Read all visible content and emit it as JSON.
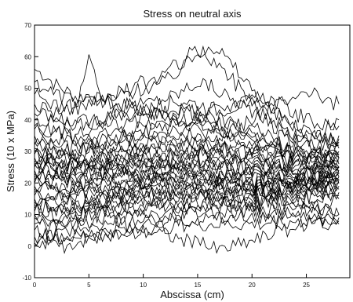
{
  "chart_data": {
    "type": "line",
    "title": "Stress on neutral axis",
    "xlabel": "Abscissa (cm)",
    "ylabel": "Stress (10 x MPa)",
    "xlim": [
      0,
      29
    ],
    "ylim": [
      -10,
      70
    ],
    "x_ticks": [
      0,
      5,
      10,
      15,
      20,
      25
    ],
    "y_ticks": [
      -10,
      0,
      10,
      20,
      30,
      40,
      50,
      60,
      70
    ],
    "grid": false,
    "legend": "none",
    "line_color": "#000000",
    "x": [
      0,
      1,
      2,
      3,
      4,
      5,
      6,
      7,
      8,
      9,
      10,
      11,
      12,
      13,
      14,
      15,
      16,
      17,
      18,
      19,
      20,
      21,
      22,
      23,
      24,
      25,
      26,
      27,
      28
    ],
    "series": [
      {
        "values": [
          56,
          54,
          51,
          49,
          47,
          48,
          46,
          45,
          44,
          45,
          43,
          42,
          41,
          40,
          39,
          38,
          37,
          36,
          35,
          34,
          33,
          32,
          31,
          30,
          29,
          28,
          27,
          26,
          25
        ]
      },
      {
        "values": [
          52,
          50,
          48,
          47,
          46,
          60,
          47,
          46,
          45,
          44,
          43,
          42,
          42,
          43,
          44,
          42,
          40,
          39,
          38,
          37,
          36,
          34,
          33,
          32,
          31,
          30,
          29,
          28,
          28
        ]
      },
      {
        "values": [
          48,
          46,
          45,
          44,
          44,
          45,
          46,
          47,
          48,
          49,
          50,
          51,
          52,
          55,
          58,
          61,
          64,
          62,
          58,
          54,
          50,
          46,
          42,
          40,
          38,
          36,
          35,
          34,
          34
        ]
      },
      {
        "values": [
          45,
          44,
          43,
          43,
          44,
          45,
          46,
          47,
          49,
          50,
          52,
          53,
          55,
          57,
          60,
          62,
          60,
          57,
          53,
          50,
          46,
          43,
          40,
          37,
          35,
          33,
          31,
          30,
          29
        ]
      },
      {
        "values": [
          42,
          41,
          40,
          39,
          39,
          40,
          41,
          42,
          43,
          44,
          45,
          46,
          47,
          48,
          50,
          52,
          51,
          49,
          47,
          45,
          43,
          40,
          38,
          36,
          34,
          32,
          30,
          29,
          28
        ]
      },
      {
        "values": [
          40,
          40,
          39,
          38,
          38,
          39,
          40,
          41,
          41,
          42,
          43,
          44,
          45,
          46,
          46,
          45,
          44,
          43,
          44,
          45,
          46,
          47,
          46,
          44,
          42,
          40,
          39,
          38,
          38
        ]
      },
      {
        "values": [
          37,
          36,
          36,
          35,
          35,
          36,
          37,
          38,
          38,
          39,
          40,
          41,
          41,
          42,
          43,
          42,
          41,
          40,
          39,
          38,
          37,
          36,
          35,
          34,
          33,
          33,
          34,
          38,
          40
        ]
      },
      {
        "values": [
          35,
          34,
          34,
          33,
          33,
          34,
          35,
          36,
          36,
          37,
          38,
          39,
          39,
          40,
          40,
          39,
          38,
          37,
          36,
          35,
          34,
          33,
          32,
          31,
          30,
          30,
          31,
          33,
          35
        ]
      },
      {
        "values": [
          33,
          32,
          32,
          31,
          31,
          32,
          33,
          34,
          35,
          35,
          36,
          36,
          37,
          37,
          38,
          37,
          36,
          35,
          34,
          33,
          32,
          31,
          30,
          30,
          29,
          29,
          30,
          31,
          32
        ]
      },
      {
        "values": [
          31,
          30,
          30,
          30,
          30,
          31,
          32,
          32,
          33,
          33,
          34,
          34,
          35,
          35,
          36,
          35,
          34,
          33,
          32,
          31,
          30,
          30,
          29,
          28,
          28,
          28,
          29,
          30,
          31
        ]
      },
      {
        "values": [
          30,
          29,
          29,
          28,
          28,
          29,
          30,
          31,
          31,
          32,
          32,
          33,
          33,
          34,
          34,
          33,
          33,
          32,
          31,
          30,
          30,
          29,
          28,
          28,
          27,
          27,
          28,
          29,
          30
        ]
      },
      {
        "values": [
          29,
          28,
          28,
          27,
          27,
          28,
          29,
          29,
          30,
          30,
          31,
          31,
          32,
          32,
          33,
          32,
          31,
          31,
          30,
          29,
          29,
          28,
          28,
          27,
          27,
          27,
          27,
          28,
          29
        ]
      },
      {
        "values": [
          28,
          27,
          27,
          26,
          26,
          27,
          28,
          28,
          29,
          29,
          30,
          30,
          31,
          31,
          31,
          31,
          30,
          30,
          29,
          28,
          28,
          27,
          27,
          26,
          26,
          26,
          27,
          27,
          28
        ]
      },
      {
        "values": [
          27,
          26,
          26,
          25,
          25,
          26,
          27,
          27,
          28,
          28,
          29,
          29,
          29,
          30,
          30,
          30,
          29,
          29,
          28,
          27,
          27,
          26,
          26,
          25,
          25,
          25,
          26,
          26,
          27
        ]
      },
      {
        "values": [
          26,
          25,
          25,
          25,
          25,
          25,
          26,
          26,
          27,
          27,
          28,
          28,
          28,
          29,
          29,
          29,
          28,
          28,
          27,
          27,
          26,
          26,
          25,
          25,
          24,
          24,
          25,
          25,
          26
        ]
      },
      {
        "values": [
          25,
          25,
          24,
          24,
          24,
          25,
          25,
          26,
          26,
          26,
          27,
          27,
          27,
          28,
          28,
          28,
          27,
          27,
          26,
          26,
          25,
          25,
          24,
          24,
          24,
          24,
          24,
          25,
          25
        ]
      },
      {
        "values": [
          24,
          24,
          23,
          23,
          23,
          24,
          24,
          25,
          25,
          25,
          26,
          26,
          26,
          27,
          27,
          27,
          26,
          26,
          25,
          25,
          24,
          24,
          24,
          23,
          23,
          23,
          24,
          24,
          25
        ]
      },
      {
        "values": [
          23,
          23,
          22,
          22,
          22,
          23,
          23,
          24,
          24,
          24,
          25,
          25,
          25,
          26,
          26,
          26,
          25,
          25,
          25,
          24,
          24,
          23,
          23,
          23,
          22,
          23,
          23,
          24,
          24
        ]
      },
      {
        "values": [
          22,
          22,
          21,
          21,
          21,
          22,
          22,
          23,
          23,
          23,
          24,
          24,
          24,
          25,
          25,
          25,
          24,
          24,
          24,
          23,
          23,
          23,
          22,
          22,
          22,
          22,
          23,
          23,
          24
        ]
      },
      {
        "values": [
          21,
          21,
          20,
          20,
          20,
          21,
          21,
          22,
          22,
          22,
          23,
          23,
          23,
          24,
          24,
          24,
          23,
          23,
          23,
          22,
          22,
          22,
          22,
          21,
          21,
          22,
          22,
          23,
          23
        ]
      },
      {
        "values": [
          20,
          20,
          19,
          19,
          19,
          20,
          20,
          21,
          21,
          21,
          22,
          22,
          22,
          23,
          23,
          23,
          22,
          22,
          22,
          22,
          21,
          21,
          21,
          21,
          21,
          21,
          22,
          22,
          23
        ]
      },
      {
        "values": [
          19,
          19,
          18,
          18,
          18,
          19,
          19,
          20,
          20,
          20,
          21,
          21,
          21,
          22,
          22,
          22,
          21,
          21,
          21,
          21,
          21,
          21,
          20,
          20,
          20,
          21,
          21,
          22,
          22
        ]
      },
      {
        "values": [
          18,
          18,
          17,
          17,
          17,
          18,
          18,
          19,
          19,
          19,
          20,
          20,
          20,
          21,
          21,
          21,
          21,
          21,
          20,
          20,
          20,
          20,
          20,
          20,
          20,
          20,
          21,
          21,
          22
        ]
      },
      {
        "values": [
          17,
          17,
          16,
          16,
          16,
          17,
          17,
          18,
          18,
          18,
          19,
          19,
          19,
          20,
          20,
          20,
          20,
          20,
          20,
          20,
          19,
          19,
          19,
          19,
          19,
          20,
          20,
          21,
          21
        ]
      },
      {
        "values": [
          16,
          16,
          15,
          15,
          15,
          16,
          16,
          17,
          17,
          17,
          18,
          18,
          18,
          19,
          19,
          19,
          19,
          19,
          19,
          19,
          19,
          19,
          19,
          19,
          19,
          19,
          20,
          20,
          21
        ]
      },
      {
        "values": [
          15,
          15,
          14,
          14,
          14,
          15,
          15,
          16,
          16,
          16,
          17,
          17,
          17,
          18,
          18,
          18,
          18,
          18,
          18,
          18,
          18,
          18,
          18,
          18,
          18,
          19,
          19,
          20,
          20
        ]
      },
      {
        "values": [
          14,
          14,
          13,
          13,
          13,
          14,
          14,
          15,
          15,
          15,
          16,
          16,
          16,
          17,
          17,
          17,
          17,
          17,
          17,
          17,
          17,
          17,
          17,
          17,
          18,
          18,
          19,
          19,
          20
        ]
      },
      {
        "values": [
          13,
          13,
          12,
          12,
          12,
          13,
          13,
          14,
          14,
          14,
          15,
          15,
          15,
          16,
          16,
          16,
          16,
          16,
          16,
          16,
          16,
          16,
          16,
          17,
          17,
          17,
          18,
          18,
          19
        ]
      },
      {
        "values": [
          12,
          12,
          11,
          11,
          11,
          12,
          12,
          13,
          13,
          13,
          14,
          14,
          14,
          15,
          15,
          15,
          15,
          15,
          15,
          15,
          15,
          15,
          16,
          16,
          16,
          16,
          17,
          17,
          18
        ]
      },
      {
        "values": [
          11,
          11,
          10,
          10,
          10,
          11,
          11,
          12,
          12,
          12,
          13,
          13,
          13,
          14,
          14,
          14,
          14,
          14,
          14,
          14,
          14,
          14,
          15,
          15,
          15,
          16,
          16,
          17,
          17
        ]
      },
      {
        "values": [
          10,
          10,
          9,
          9,
          9,
          10,
          10,
          11,
          11,
          11,
          12,
          12,
          12,
          13,
          13,
          13,
          13,
          13,
          13,
          13,
          13,
          13,
          14,
          14,
          14,
          15,
          15,
          16,
          16
        ]
      },
      {
        "values": [
          9,
          8,
          8,
          7,
          7,
          8,
          8,
          9,
          9,
          9,
          10,
          10,
          10,
          11,
          11,
          11,
          11,
          11,
          11,
          11,
          11,
          11,
          12,
          12,
          12,
          12,
          11,
          10,
          10
        ]
      },
      {
        "values": [
          7,
          6,
          6,
          5,
          5,
          6,
          6,
          7,
          7,
          7,
          8,
          8,
          8,
          9,
          9,
          9,
          9,
          9,
          9,
          9,
          9,
          9,
          9,
          10,
          10,
          10,
          9,
          8,
          8
        ]
      },
      {
        "values": [
          5,
          4,
          4,
          3,
          3,
          4,
          4,
          5,
          5,
          5,
          6,
          6,
          6,
          7,
          7,
          7,
          7,
          7,
          7,
          7,
          7,
          7,
          8,
          8,
          8,
          8,
          8,
          7,
          7
        ]
      },
      {
        "values": [
          3,
          3,
          2,
          2,
          2,
          3,
          3,
          4,
          4,
          4,
          5,
          5,
          4,
          3,
          2,
          1,
          0,
          -1,
          0,
          1,
          2,
          3,
          4,
          5,
          6,
          7,
          8,
          8,
          9
        ]
      },
      {
        "values": [
          1,
          1,
          0,
          0,
          1,
          2,
          3,
          4,
          5,
          6,
          7,
          8,
          9,
          10,
          11,
          12,
          13,
          14,
          15,
          16,
          17,
          18,
          19,
          20,
          21,
          22,
          23,
          24,
          25
        ]
      },
      {
        "values": [
          0,
          2,
          4,
          6,
          8,
          10,
          12,
          14,
          16,
          18,
          20,
          22,
          24,
          26,
          28,
          30,
          32,
          34,
          36,
          38,
          40,
          42,
          44,
          46,
          48,
          49,
          48,
          46,
          45
        ]
      },
      {
        "values": [
          38,
          37,
          36,
          35,
          34,
          33,
          32,
          31,
          30,
          29,
          28,
          27,
          26,
          25,
          24,
          23,
          22,
          21,
          20,
          19,
          18,
          17,
          16,
          15,
          14,
          13,
          12,
          11,
          10
        ]
      },
      {
        "values": [
          32,
          31,
          30,
          29,
          28,
          27,
          26,
          25,
          24,
          23,
          22,
          21,
          20,
          19,
          18,
          17,
          16,
          15,
          14,
          13,
          12,
          11,
          10,
          10,
          11,
          12,
          13,
          14,
          15
        ]
      },
      {
        "values": [
          26,
          27,
          28,
          29,
          30,
          31,
          32,
          33,
          34,
          35,
          36,
          37,
          38,
          39,
          40,
          41,
          42,
          43,
          44,
          45,
          46,
          45,
          43,
          41,
          39,
          37,
          35,
          34,
          33
        ]
      }
    ]
  }
}
